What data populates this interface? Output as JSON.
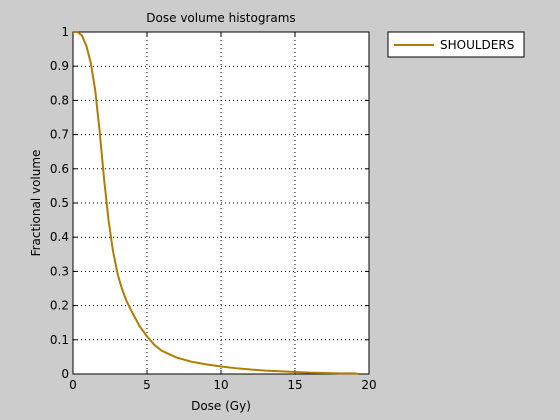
{
  "window": {
    "background_color": "#cccccc"
  },
  "chart_data": {
    "type": "line",
    "title": "Dose volume histograms",
    "xlabel": "Dose (Gy)",
    "ylabel": "Fractional volume",
    "xlim": [
      0,
      20
    ],
    "ylim": [
      0,
      1
    ],
    "xticks": [
      0,
      5,
      10,
      15,
      20
    ],
    "yticks": [
      0,
      0.1,
      0.2,
      0.3,
      0.4,
      0.5,
      0.6,
      0.7,
      0.8,
      0.9,
      1
    ],
    "grid": true,
    "grid_style": "dotted",
    "legend_position": "outside-top-right",
    "series": [
      {
        "name": "SHOULDERS",
        "color": "#b07d00",
        "x": [
          0,
          0.3,
          0.6,
          0.9,
          1.2,
          1.5,
          1.8,
          2.1,
          2.4,
          2.7,
          3.0,
          3.3,
          3.6,
          4.0,
          4.5,
          5.0,
          5.5,
          6.0,
          7.0,
          8.0,
          9.0,
          10.0,
          11.0,
          12.0,
          13.0,
          14.0,
          15.0,
          16.0,
          17.0,
          18.0,
          19.0,
          19.3
        ],
        "values": [
          1.0,
          1.0,
          0.99,
          0.96,
          0.91,
          0.83,
          0.71,
          0.57,
          0.45,
          0.36,
          0.295,
          0.25,
          0.215,
          0.18,
          0.14,
          0.11,
          0.085,
          0.068,
          0.048,
          0.036,
          0.028,
          0.022,
          0.017,
          0.013,
          0.01,
          0.008,
          0.006,
          0.004,
          0.003,
          0.002,
          0.002,
          0.0
        ]
      }
    ]
  }
}
